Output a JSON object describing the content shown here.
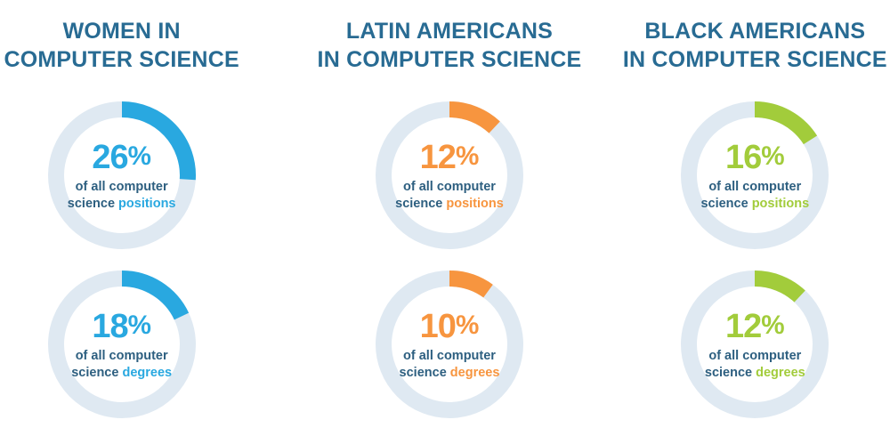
{
  "background_color": "#ffffff",
  "colors": {
    "title_text": "#286b93",
    "desc_text": "#2d5f80",
    "ring_background": "#dfe9f2",
    "blue_accent": "#29a8e0",
    "orange_accent": "#f7953f",
    "green_accent": "#a2cc3b"
  },
  "chart_data": {
    "type": "pie",
    "style": "donut",
    "start_angle_deg": 0,
    "direction": "clockwise",
    "unit": "%",
    "groups": [
      {
        "title": "WOMEN IN COMPUTER SCIENCE",
        "accent_color": "#29a8e0",
        "values": [
          {
            "metric": "of all computer science positions",
            "pct": 26
          },
          {
            "metric": "of all computer science degrees",
            "pct": 18
          }
        ]
      },
      {
        "title": "LATIN AMERICANS IN COMPUTER SCIENCE",
        "accent_color": "#f7953f",
        "values": [
          {
            "metric": "of all computer science positions",
            "pct": 12
          },
          {
            "metric": "of all computer science degrees",
            "pct": 10
          }
        ]
      },
      {
        "title": "BLACK AMERICANS IN COMPUTER SCIENCE",
        "accent_color": "#a2cc3b",
        "values": [
          {
            "metric": "of all computer science positions",
            "pct": 16
          },
          {
            "metric": "of all computer science degrees",
            "pct": 12
          }
        ]
      }
    ]
  },
  "columns": [
    {
      "title_line1": "WOMEN IN",
      "title_line2": "COMPUTER SCIENCE",
      "accent": "#29a8e0",
      "donuts": [
        {
          "percent": 26,
          "value": "26",
          "suffix": "%",
          "desc_line1": "of all computer",
          "desc_word": "science",
          "desc_highlight": "positions"
        },
        {
          "percent": 18,
          "value": "18",
          "suffix": "%",
          "desc_line1": "of all computer",
          "desc_word": "science",
          "desc_highlight": "degrees"
        }
      ]
    },
    {
      "title_line1": "LATIN AMERICANS",
      "title_line2": "IN COMPUTER SCIENCE",
      "accent": "#f7953f",
      "donuts": [
        {
          "percent": 12,
          "value": "12",
          "suffix": "%",
          "desc_line1": "of all computer",
          "desc_word": "science",
          "desc_highlight": "positions"
        },
        {
          "percent": 10,
          "value": "10",
          "suffix": "%",
          "desc_line1": "of all computer",
          "desc_word": "science",
          "desc_highlight": "degrees"
        }
      ]
    },
    {
      "title_line1": "BLACK AMERICANS",
      "title_line2": "IN COMPUTER SCIENCE",
      "accent": "#a2cc3b",
      "donuts": [
        {
          "percent": 16,
          "value": "16",
          "suffix": "%",
          "desc_line1": "of all computer",
          "desc_word": "science",
          "desc_highlight": "positions"
        },
        {
          "percent": 12,
          "value": "12",
          "suffix": "%",
          "desc_line1": "of all computer",
          "desc_word": "science",
          "desc_highlight": "degrees"
        }
      ]
    }
  ]
}
